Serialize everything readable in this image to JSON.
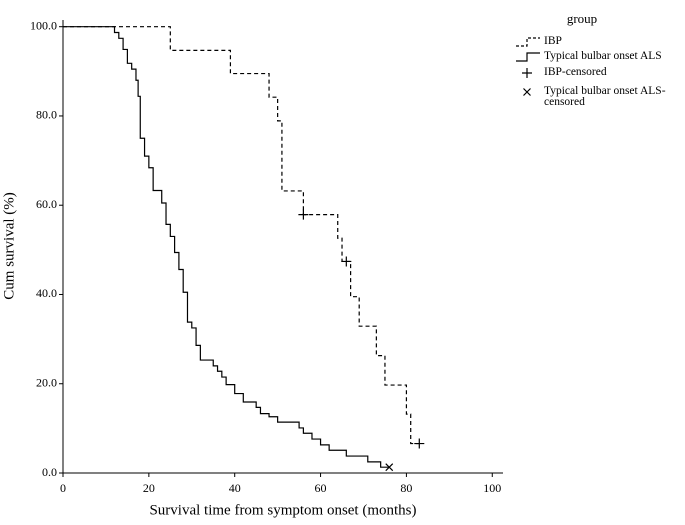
{
  "chart_data": {
    "type": "step",
    "x_label": "Survival time from symptom onset (months)",
    "y_label": "Cum survival (%)",
    "legend_title": "group",
    "legend_position": "upper right",
    "xlim": [
      0,
      102.5
    ],
    "ylim": [
      0,
      101.5
    ],
    "xticks": [
      0,
      20,
      40,
      60,
      80,
      100
    ],
    "yticks": [
      {
        "value": 0,
        "label": "0.0"
      },
      {
        "value": 20,
        "label": "20.0"
      },
      {
        "value": 40,
        "label": "40.0"
      },
      {
        "value": 60,
        "label": "60.0"
      },
      {
        "value": 80,
        "label": "80.0"
      },
      {
        "value": 100,
        "label": "100.0"
      }
    ],
    "series": [
      {
        "name": "IBP",
        "color": "#000000",
        "style": "dashed",
        "x": [
          0,
          25,
          39,
          48,
          50,
          51,
          56,
          64,
          65,
          67,
          69,
          73,
          75,
          80,
          81,
          83
        ],
        "values": [
          100,
          94.7,
          89.5,
          84.2,
          78.9,
          63.2,
          57.9,
          52.6,
          47.4,
          39.5,
          32.9,
          26.3,
          19.7,
          13.2,
          6.6,
          6.6
        ]
      },
      {
        "name": "Typical bulbar onset ALS",
        "color": "#000000",
        "style": "solid",
        "x": [
          0,
          12,
          13,
          14,
          15,
          16,
          17,
          17.5,
          18,
          19,
          20,
          21,
          23,
          24,
          25,
          26,
          27,
          28,
          29,
          30,
          31,
          32,
          35,
          36,
          37,
          38,
          40,
          42,
          45,
          46,
          48,
          50,
          55,
          56,
          58,
          60,
          62,
          66,
          71,
          74,
          76
        ],
        "values": [
          100,
          98.7,
          97.4,
          94.9,
          91.8,
          90.5,
          88,
          84.4,
          75,
          71,
          68.4,
          63.3,
          60.5,
          55.7,
          53,
          49.4,
          45.6,
          40.5,
          33.8,
          32.5,
          28.6,
          25.3,
          24,
          22.8,
          21.5,
          19.8,
          17.8,
          15.9,
          14.7,
          13.3,
          12.6,
          11.4,
          10.1,
          8.9,
          7.6,
          6.3,
          5.1,
          3.8,
          2.5,
          1.3,
          1.3
        ]
      },
      {
        "name": "IBP-censored",
        "color": "#000000",
        "marker": "plus",
        "x": [
          56,
          66,
          83
        ],
        "values": [
          57.9,
          47.4,
          6.6
        ]
      },
      {
        "name": "Typical bulbar onset ALS-censored",
        "color": "#000000",
        "marker": "cross",
        "x": [
          76
        ],
        "values": [
          1.3
        ]
      }
    ]
  }
}
